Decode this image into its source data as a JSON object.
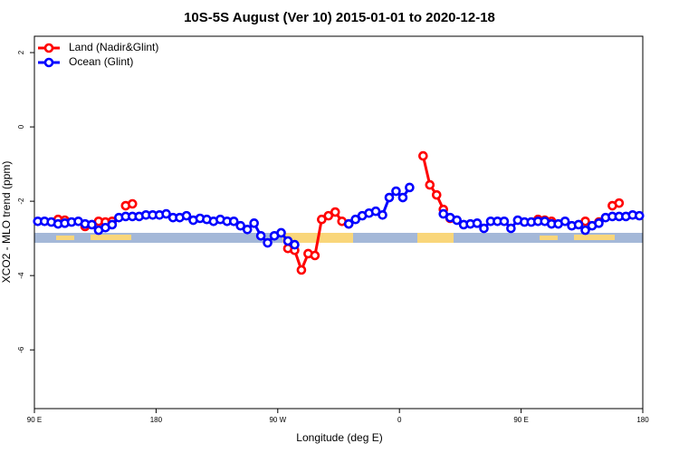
{
  "chart_data": {
    "type": "line",
    "title": "10S-5S August (Ver 10)   2015-01-01 to 2020-12-18",
    "x_label": "Longitude (deg E)",
    "y_label": "XCO2 - MLO trend (ppm)",
    "x": [
      92.5,
      97.5,
      102.5,
      107.5,
      112.5,
      117.5,
      122.5,
      127.5,
      132.5,
      137.5,
      142.5,
      147.5,
      152.5,
      157.5,
      162.5,
      167.5,
      172.5,
      177.5,
      182.5,
      187.5,
      192.5,
      197.5,
      202.5,
      207.5,
      212.5,
      217.5,
      222.5,
      227.5,
      232.5,
      237.5,
      242.5,
      247.5,
      252.5,
      257.5,
      262.5,
      267.5,
      272.5,
      277.5,
      282.5,
      287.5,
      292.5,
      297.5,
      302.5,
      307.5,
      312.5,
      317.5,
      322.5,
      327.5,
      332.5,
      337.5,
      342.5,
      347.5,
      352.5,
      357.5,
      362.5,
      367.5,
      372.5,
      377.5,
      382.5,
      387.5,
      392.5,
      397.5,
      402.5,
      407.5,
      412.5,
      417.5,
      422.5,
      427.5,
      432.5,
      437.5,
      442.5,
      447.5,
      452.5,
      457.5,
      462.5,
      467.5,
      472.5,
      477.5,
      482.5,
      487.5,
      492.5,
      497.5,
      502.5,
      507.5,
      512.5,
      517.5,
      522.5,
      527.5,
      532.5,
      537.5
    ],
    "series": [
      {
        "name": "Land (Nadir&Glint)",
        "color": "#ff0000",
        "values": [
          null,
          null,
          null,
          -2.49,
          -2.51,
          null,
          null,
          -2.68,
          null,
          -2.54,
          -2.56,
          -2.54,
          null,
          -2.12,
          -2.07,
          null,
          null,
          null,
          null,
          null,
          null,
          null,
          null,
          null,
          null,
          null,
          null,
          null,
          null,
          null,
          null,
          null,
          null,
          null,
          null,
          null,
          null,
          -3.27,
          -3.32,
          -3.85,
          -3.41,
          -3.46,
          -2.49,
          -2.39,
          -2.29,
          -2.54,
          -2.61,
          null,
          null,
          null,
          null,
          null,
          null,
          null,
          null,
          null,
          null,
          -0.78,
          -1.56,
          -1.83,
          -2.22,
          -2.46,
          null,
          null,
          null,
          null,
          null,
          null,
          null,
          null,
          null,
          null,
          null,
          null,
          -2.49,
          -2.51,
          -2.54,
          null,
          null,
          null,
          null,
          -2.54,
          null,
          -2.56,
          null,
          -2.12,
          -2.05,
          null,
          null,
          null
        ]
      },
      {
        "name": "Ocean (Glint)",
        "color": "#0000ff",
        "values": [
          -2.54,
          -2.54,
          -2.56,
          -2.61,
          -2.59,
          -2.56,
          -2.54,
          -2.61,
          -2.63,
          -2.78,
          -2.71,
          -2.63,
          -2.44,
          -2.41,
          -2.41,
          -2.41,
          -2.37,
          -2.37,
          -2.37,
          -2.34,
          -2.44,
          -2.44,
          -2.39,
          -2.51,
          -2.46,
          -2.49,
          -2.54,
          -2.49,
          -2.54,
          -2.54,
          -2.66,
          -2.76,
          -2.59,
          -2.93,
          -3.12,
          -2.93,
          -2.85,
          -3.07,
          -3.17,
          null,
          null,
          null,
          null,
          null,
          null,
          null,
          -2.61,
          -2.49,
          -2.39,
          -2.32,
          -2.27,
          -2.37,
          -1.9,
          -1.73,
          -1.9,
          -1.63,
          null,
          null,
          null,
          null,
          -2.34,
          -2.44,
          -2.51,
          -2.63,
          -2.61,
          -2.59,
          -2.73,
          -2.54,
          -2.54,
          -2.54,
          -2.73,
          -2.51,
          -2.56,
          -2.56,
          -2.54,
          -2.54,
          -2.61,
          -2.61,
          -2.54,
          -2.66,
          -2.63,
          -2.78,
          -2.66,
          -2.59,
          -2.44,
          -2.41,
          -2.41,
          -2.41,
          -2.37,
          -2.39
        ]
      }
    ],
    "xlim": [
      90,
      540
    ],
    "xticks": [
      {
        "value": 90,
        "label": "90 E"
      },
      180,
      {
        "value": 270,
        "label": "90 W"
      },
      {
        "value": 360,
        "label": "0"
      },
      {
        "value": 450,
        "label": "90 E"
      },
      {
        "value": 540,
        "label": "180"
      }
    ],
    "ylim": [
      -7.58,
      2.44
    ],
    "yticks": [
      -6,
      -4,
      -2,
      0,
      2
    ],
    "legend": "top-left"
  }
}
